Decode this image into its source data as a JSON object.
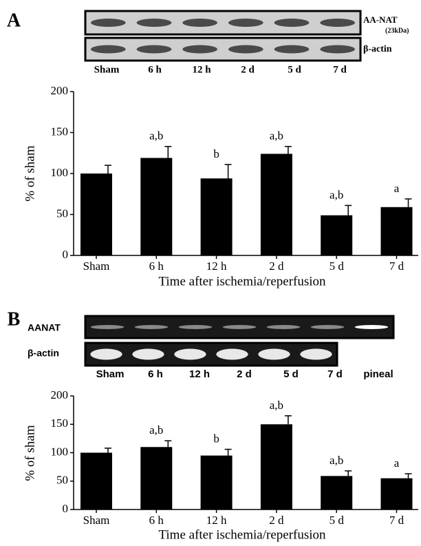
{
  "chart_data": [
    {
      "type": "bar",
      "panel_label": "A",
      "blot_labels": [
        "AA-NAT",
        "(23kDa)",
        "β-actin"
      ],
      "lane_labels": [
        "Sham",
        "6 h",
        "12 h",
        "2 d",
        "5 d",
        "7 d"
      ],
      "categories": [
        "Sham",
        "6 h",
        "12 h",
        "2 d",
        "5 d",
        "7 d"
      ],
      "values": [
        100,
        119,
        94,
        124,
        49,
        59
      ],
      "errors": [
        10,
        14,
        17,
        9,
        12,
        10
      ],
      "annotations": [
        null,
        "a,b",
        "b",
        "a,b",
        "a,b",
        "a"
      ],
      "ylabel": "% of sham",
      "xlabel": "Time after ischemia/reperfusion",
      "ylim": [
        0,
        200
      ],
      "yticks": [
        0,
        50,
        100,
        150,
        200
      ],
      "color": "#000000"
    },
    {
      "type": "bar",
      "panel_label": "B",
      "blot_labels": [
        "AANAT",
        "β-actin"
      ],
      "lane_labels": [
        "Sham",
        "6 h",
        "12 h",
        "2 d",
        "5 d",
        "7 d",
        "pineal"
      ],
      "categories": [
        "Sham",
        "6 h",
        "12 h",
        "2 d",
        "5 d",
        "7 d"
      ],
      "values": [
        100,
        110,
        95,
        150,
        59,
        55
      ],
      "errors": [
        8,
        11,
        11,
        15,
        9,
        8
      ],
      "annotations": [
        null,
        "a,b",
        "b",
        "a,b",
        "a,b",
        "a"
      ],
      "ylabel": "% of sham",
      "xlabel": "Time after ischemia/reperfusion",
      "ylim": [
        0,
        200
      ],
      "yticks": [
        0,
        50,
        100,
        150,
        200
      ],
      "color": "#000000"
    }
  ]
}
